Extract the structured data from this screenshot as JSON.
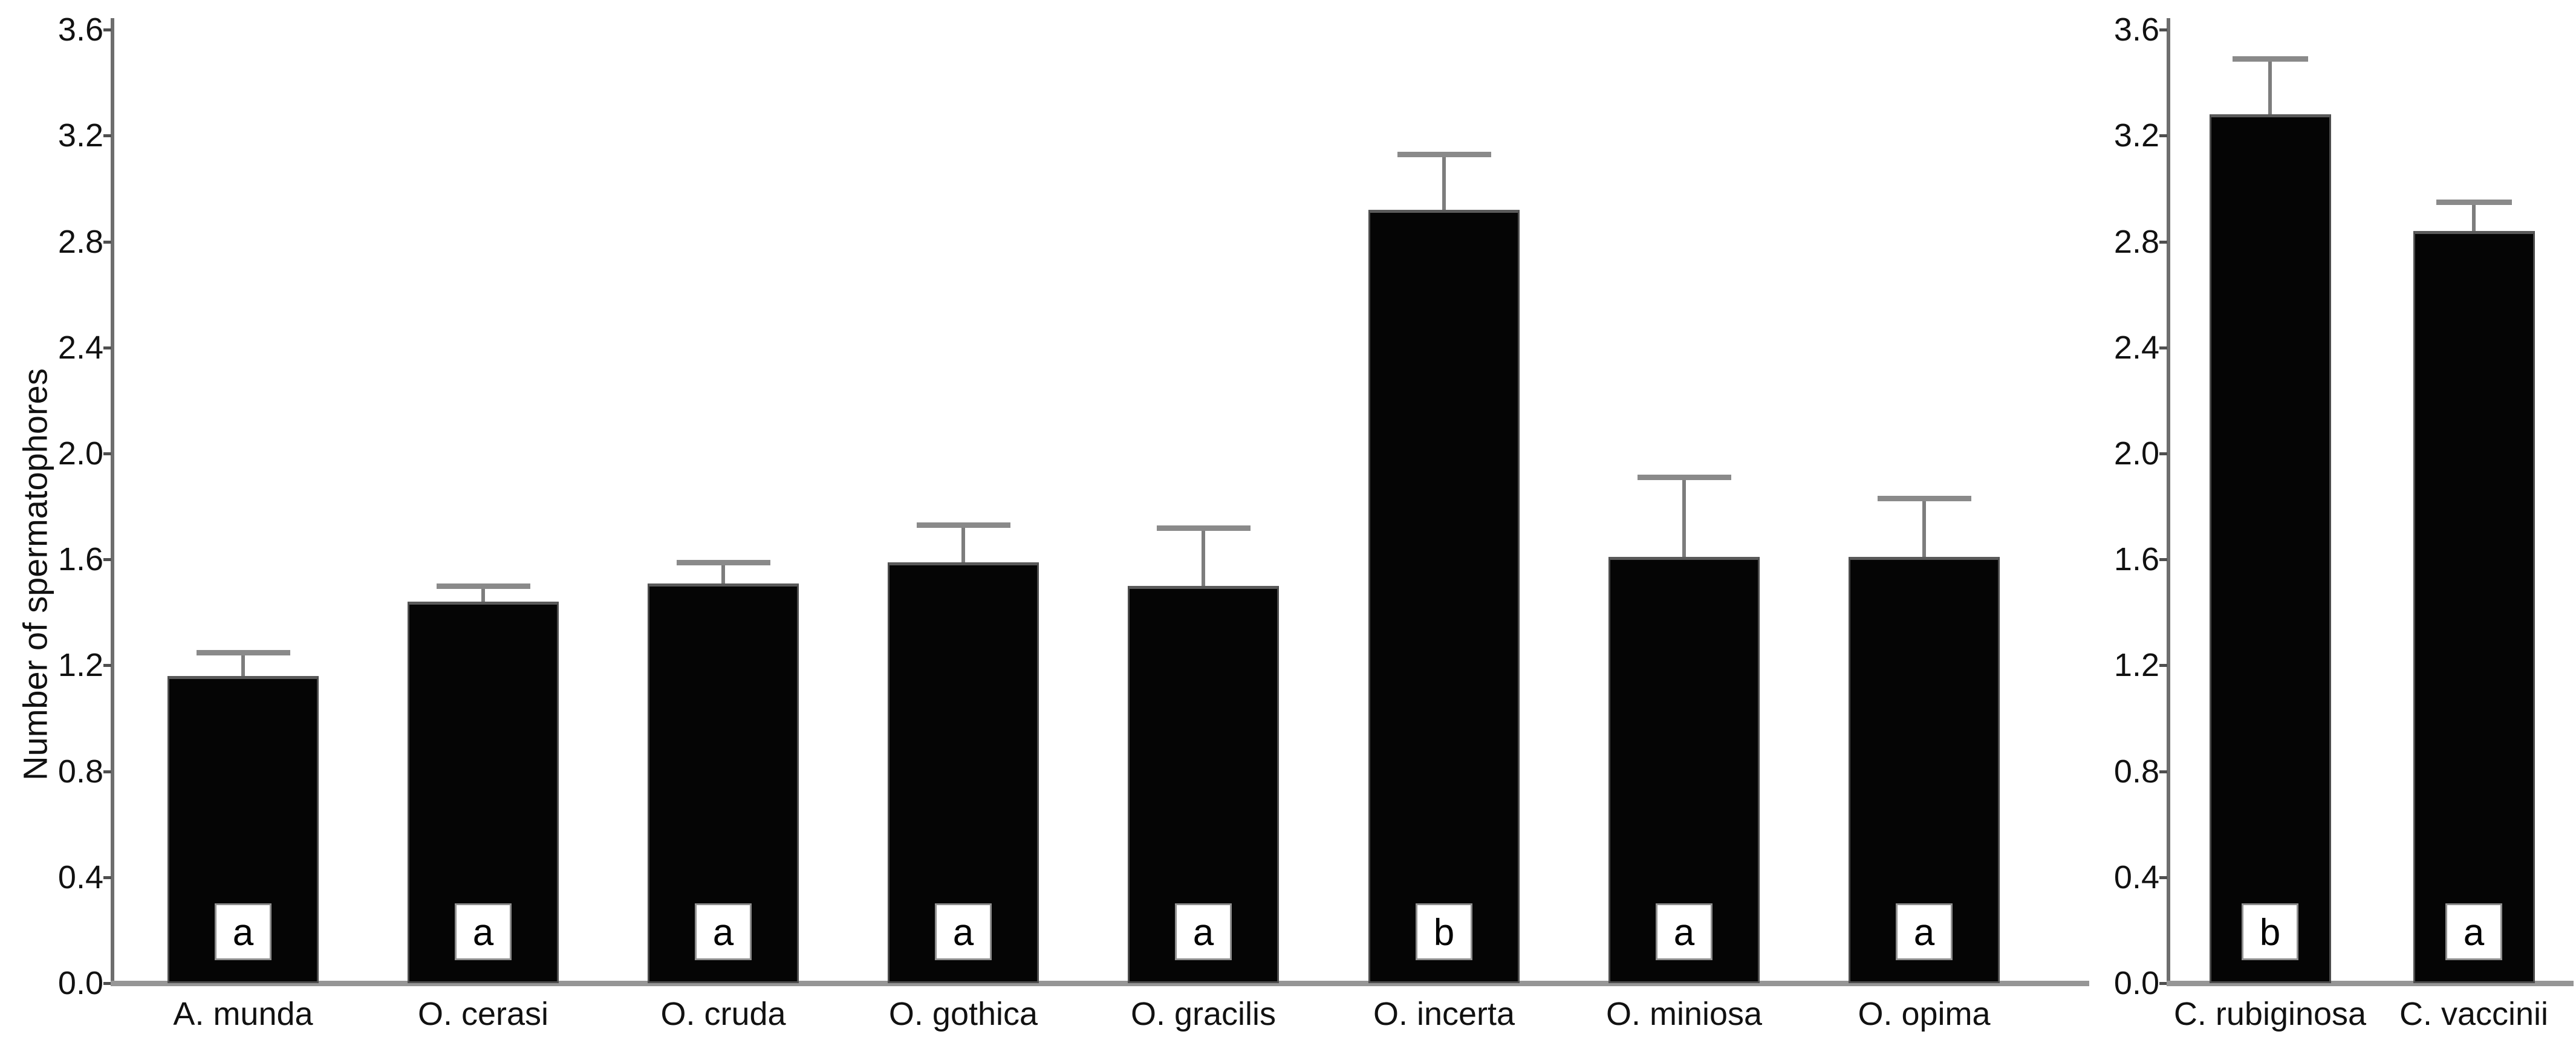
{
  "figure": {
    "ylabel": "Number of spermatophores",
    "background_color": "#ffffff",
    "bar_color": "#050505",
    "axis_color": "#6e6e6e",
    "baseline_color": "#969696",
    "error_bar_color": "#8a8a8a",
    "text_color": "#111111",
    "sig_box_background": "#ffffff"
  },
  "chart_data": [
    {
      "type": "bar",
      "panel": "left",
      "title": "",
      "xlabel": "",
      "ylabel": "Number of spermatophores",
      "ylim": [
        0,
        3.6
      ],
      "yticks": [
        0.0,
        0.4,
        0.8,
        1.2,
        1.6,
        2.0,
        2.4,
        2.8,
        3.2,
        3.6
      ],
      "grid": false,
      "legend": "none",
      "categories": [
        "A. munda",
        "O. cerasi",
        "O. cruda",
        "O. gothica",
        "O. gracilis",
        "O. incerta",
        "O. miniosa",
        "O. opima"
      ],
      "values": [
        1.16,
        1.44,
        1.51,
        1.59,
        1.5,
        2.92,
        1.61,
        1.61
      ],
      "errors_plus": [
        0.09,
        0.06,
        0.08,
        0.14,
        0.22,
        0.21,
        0.3,
        0.22
      ],
      "sig_letters": [
        "a",
        "a",
        "a",
        "a",
        "a",
        "b",
        "a",
        "a"
      ]
    },
    {
      "type": "bar",
      "panel": "right",
      "title": "",
      "xlabel": "",
      "ylabel": "",
      "ylim": [
        0,
        3.6
      ],
      "yticks": [
        0.0,
        0.4,
        0.8,
        1.2,
        1.6,
        2.0,
        2.4,
        2.8,
        3.2,
        3.6
      ],
      "grid": false,
      "legend": "none",
      "categories": [
        "C. rubiginosa",
        "C. vaccinii"
      ],
      "values": [
        3.28,
        2.84
      ],
      "errors_plus": [
        0.21,
        0.11
      ],
      "sig_letters": [
        "b",
        "a"
      ]
    }
  ]
}
